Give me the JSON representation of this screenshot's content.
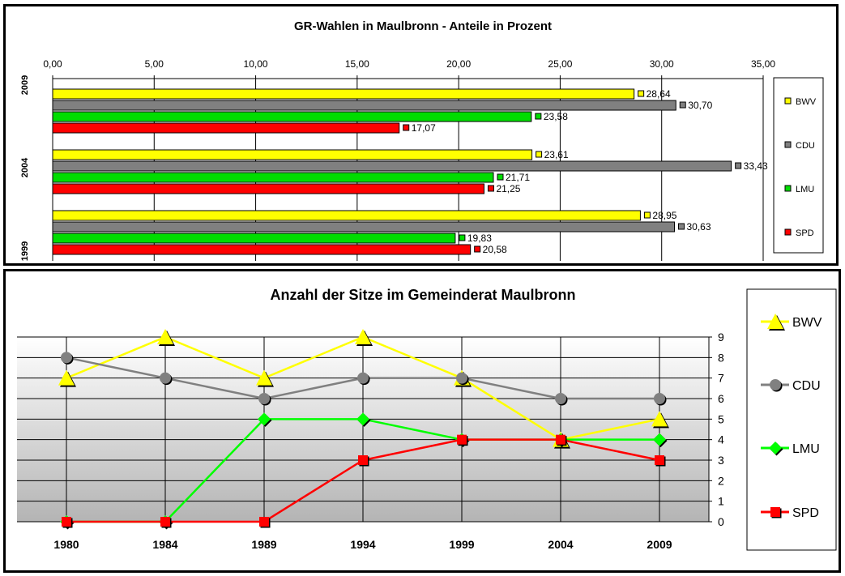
{
  "chart_data": [
    {
      "type": "bar",
      "orientation": "horizontal",
      "title": "GR-Wahlen in Maulbronn - Anteile in Prozent",
      "categories": [
        "2009",
        "2004",
        "1999"
      ],
      "xlim": [
        0,
        35
      ],
      "x_ticks": [
        "0,00",
        "5,00",
        "10,00",
        "15,00",
        "20,00",
        "25,00",
        "30,00",
        "35,00"
      ],
      "grid": "vertical",
      "legend_position": "right",
      "series": [
        {
          "name": "BWV",
          "color": "#ffff00",
          "values": [
            28.64,
            23.61,
            28.95
          ],
          "labels": [
            "28,64",
            "23,61",
            "28,95"
          ]
        },
        {
          "name": "CDU",
          "color": "#808080",
          "values": [
            30.7,
            33.43,
            30.63
          ],
          "labels": [
            "30,70",
            "33,43",
            "30,63"
          ]
        },
        {
          "name": "LMU",
          "color": "#00dd00",
          "values": [
            23.58,
            21.71,
            19.83
          ],
          "labels": [
            "23,58",
            "21,71",
            "19,83"
          ]
        },
        {
          "name": "SPD",
          "color": "#ff0000",
          "values": [
            17.07,
            21.25,
            20.58
          ],
          "labels": [
            "17,07",
            "21,25",
            "20,58"
          ]
        }
      ]
    },
    {
      "type": "line",
      "title": "Anzahl der Sitze im Gemeinderat Maulbronn",
      "categories": [
        "1980",
        "1984",
        "1989",
        "1994",
        "1999",
        "2004",
        "2009"
      ],
      "ylim": [
        0,
        9
      ],
      "y_ticks": [
        "0",
        "1",
        "2",
        "3",
        "4",
        "5",
        "6",
        "7",
        "8",
        "9"
      ],
      "y_axis_side": "right",
      "grid": "horizontal-and-vertical",
      "legend_position": "right",
      "series": [
        {
          "name": "BWV",
          "color": "#ffff00",
          "marker": "triangle",
          "values": [
            7,
            9,
            7,
            9,
            7,
            4,
            5
          ]
        },
        {
          "name": "CDU",
          "color": "#808080",
          "marker": "circle",
          "values": [
            8,
            7,
            6,
            7,
            7,
            6,
            6
          ]
        },
        {
          "name": "LMU",
          "color": "#00ff00",
          "marker": "diamond",
          "values": [
            0,
            0,
            5,
            5,
            4,
            4,
            4
          ]
        },
        {
          "name": "SPD",
          "color": "#ff0000",
          "marker": "square",
          "values": [
            0,
            0,
            0,
            3,
            4,
            4,
            3
          ]
        }
      ]
    }
  ]
}
